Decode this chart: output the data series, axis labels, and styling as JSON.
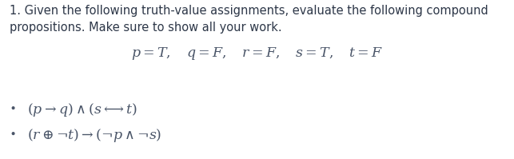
{
  "bg_color": "#ffffff",
  "text_color": "#4a5568",
  "header_color": "#2d3748",
  "header_text": "1. Given the following truth-value assignments, evaluate the following compound",
  "header_text2": "propositions. Make sure to show all your work.",
  "assignments": "$p = T, \\quad q = F, \\quad r = F, \\quad s = T, \\quad t = F$",
  "bullet1": "$(p \\rightarrow q) \\wedge (s \\longleftrightarrow t)$",
  "bullet2": "$(r \\oplus \\neg t) \\rightarrow (\\neg p \\wedge \\neg s)$",
  "header_fontsize": 10.5,
  "math_fontsize": 12.5,
  "bullet_fontsize": 12.5,
  "figwidth": 6.43,
  "figheight": 1.99,
  "dpi": 100
}
